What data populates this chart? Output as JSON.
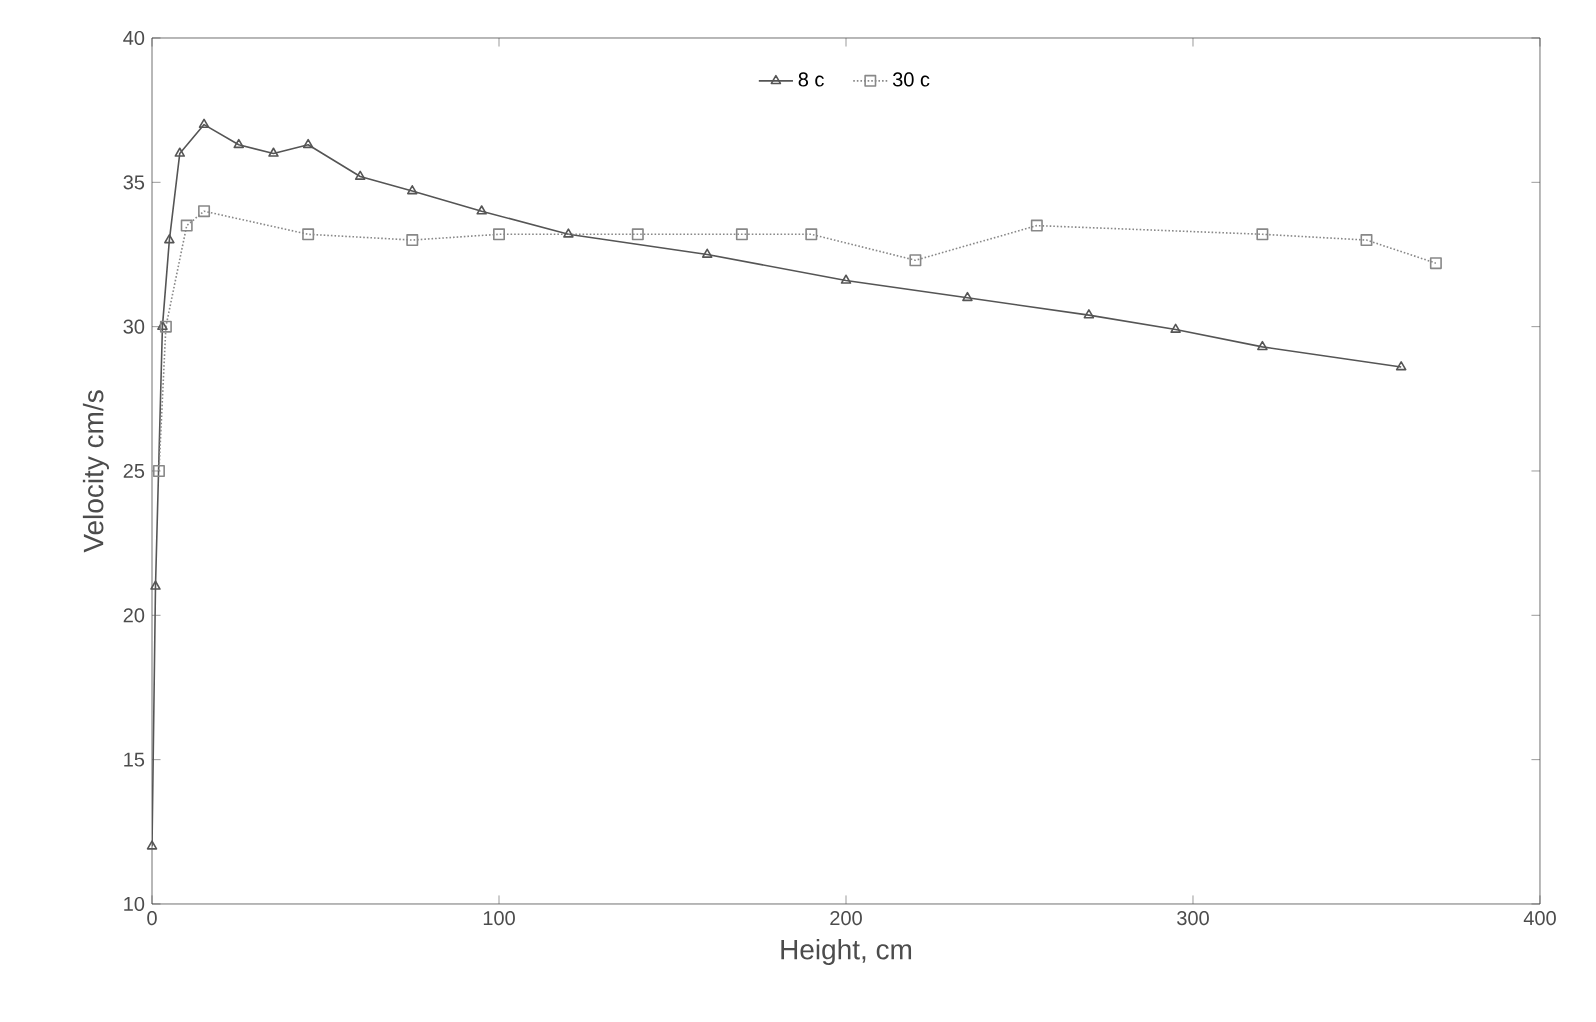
{
  "chart_data": {
    "type": "line",
    "xlabel": "Height, cm",
    "ylabel": "Velocity cm/s",
    "xlim": [
      0,
      400
    ],
    "ylim": [
      10,
      40
    ],
    "xticks": [
      0,
      100,
      200,
      300,
      400
    ],
    "yticks": [
      10,
      15,
      20,
      25,
      30,
      35,
      40
    ],
    "legend": "top",
    "grid": false,
    "series": [
      {
        "name": "8 c",
        "color": "#555555",
        "marker": "triangle",
        "line_style": "solid",
        "x": [
          0,
          1,
          3,
          5,
          8,
          15,
          25,
          35,
          45,
          60,
          75,
          95,
          120,
          160,
          200,
          235,
          270,
          295,
          320,
          360
        ],
        "values": [
          12,
          21,
          30,
          33,
          36,
          37,
          36.3,
          36,
          36.3,
          35.2,
          34.7,
          34,
          33.2,
          32.5,
          31.6,
          31,
          30.4,
          29.9,
          29.3,
          28.6
        ]
      },
      {
        "name": "30 c",
        "color": "#888888",
        "marker": "square",
        "line_style": "dotted",
        "x": [
          2,
          4,
          10,
          15,
          45,
          75,
          100,
          140,
          170,
          190,
          220,
          255,
          320,
          350,
          370
        ],
        "values": [
          25,
          30,
          33.5,
          34,
          33.2,
          33,
          33.2,
          33.2,
          33.2,
          33.2,
          32.3,
          33.5,
          33.2,
          33,
          32.2
        ]
      }
    ]
  }
}
